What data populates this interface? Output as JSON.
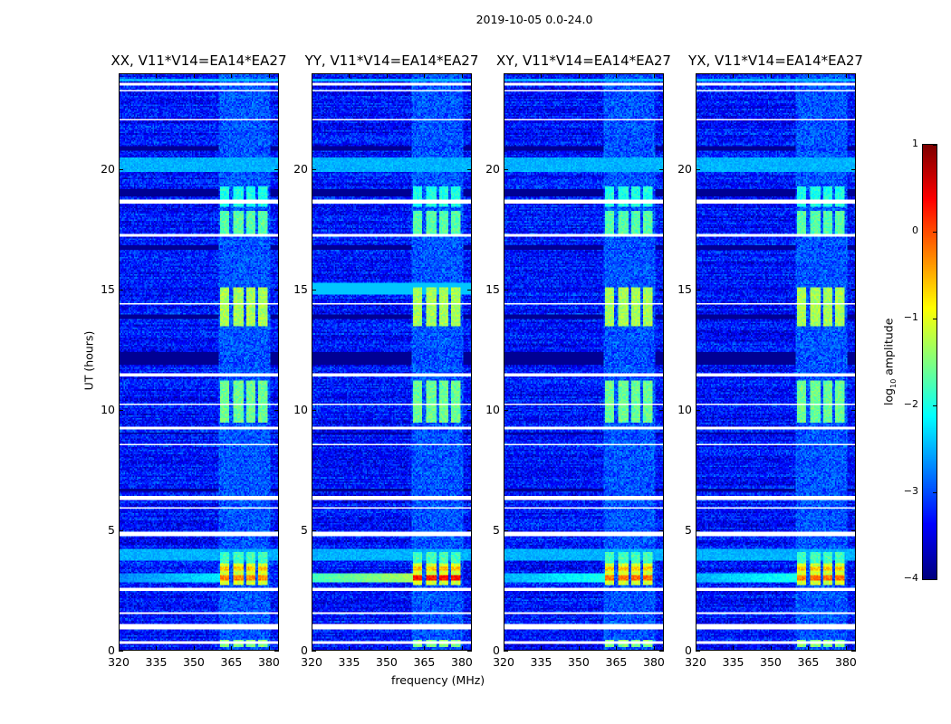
{
  "chart_data": {
    "type": "heatmap",
    "title": "2019-10-05 0.0-24.0",
    "xlabel": "frequency (MHz)",
    "ylabel": "UT (hours)",
    "xlim": [
      320,
      384
    ],
    "ylim": [
      0,
      24
    ],
    "xticks": [
      "320",
      "335",
      "350",
      "365",
      "380"
    ],
    "xtick_values": [
      320,
      335,
      350,
      365,
      380
    ],
    "yticks": [
      "0",
      "5",
      "10",
      "15",
      "20"
    ],
    "ytick_values": [
      0,
      5,
      10,
      15,
      20
    ],
    "colormap": "jet",
    "colorbar": {
      "label_prefix": "log",
      "label_sub": "10",
      "label_suffix": " amplitude",
      "range": [
        -4,
        1
      ],
      "ticks": [
        "−4",
        "−3",
        "−2",
        "−1",
        "0",
        "1"
      ],
      "tick_values": [
        -4,
        -3,
        -2,
        -1,
        0,
        1
      ]
    },
    "panels": [
      {
        "title": "XX, V11*V14=EA14*EA27",
        "peak": -0.3,
        "broadband_3h": -2.2
      },
      {
        "title": "YY, V11*V14=EA14*EA27",
        "peak": 0.3,
        "broadband_3h": -1.3
      },
      {
        "title": "XY, V11*V14=EA14*EA27",
        "peak": -0.2,
        "broadband_3h": -2.0
      },
      {
        "title": "YX, V11*V14=EA14*EA27",
        "peak": -0.2,
        "broadband_3h": -2.0
      }
    ],
    "background_level": -3.3,
    "rfi_channel_blocks_mhz": [
      [
        360.5,
        364.5
      ],
      [
        366,
        370
      ],
      [
        371,
        375
      ],
      [
        376,
        380
      ]
    ],
    "rfi_time_segments_h": [
      {
        "range": [
          0.1,
          0.4
        ],
        "level": -1.5
      },
      {
        "range": [
          2.7,
          3.6
        ],
        "level": -0.5
      },
      {
        "range": [
          3.6,
          4.1
        ],
        "level": -1.8
      },
      {
        "range": [
          9.5,
          11.2
        ],
        "level": -1.6
      },
      {
        "range": [
          13.5,
          15.1
        ],
        "level": -1.3
      },
      {
        "range": [
          17.2,
          18.3
        ],
        "level": -1.7
      },
      {
        "range": [
          18.5,
          19.3
        ],
        "level": -2.0
      }
    ],
    "flagged_rows_h": [
      [
        0.25,
        0.35
      ],
      [
        0.85,
        1.1
      ],
      [
        1.5,
        1.55
      ],
      [
        2.45,
        2.55
      ],
      [
        4.75,
        4.95
      ],
      [
        5.9,
        5.95
      ],
      [
        6.25,
        6.45
      ],
      [
        7.3,
        7.35
      ],
      [
        8.5,
        8.6
      ],
      [
        9.2,
        9.3
      ],
      [
        10.2,
        10.25
      ],
      [
        11.4,
        11.5
      ],
      [
        13.0,
        13.05
      ],
      [
        14.4,
        14.45
      ],
      [
        15.7,
        15.75
      ],
      [
        17.25,
        17.35
      ],
      [
        18.6,
        18.8
      ],
      [
        19.3,
        19.35
      ],
      [
        21.4,
        21.45
      ],
      [
        22.1,
        22.15
      ],
      [
        23.3,
        23.35
      ],
      [
        23.55,
        23.65
      ]
    ],
    "dark_rows_h": [
      [
        6.6,
        6.7
      ],
      [
        9.0,
        9.05
      ],
      [
        11.9,
        12.4
      ],
      [
        13.8,
        14.0
      ],
      [
        16.7,
        16.85
      ],
      [
        18.9,
        19.2
      ],
      [
        20.8,
        21.0
      ],
      [
        22.6,
        22.65
      ]
    ],
    "bright_broadband_rows_h": [
      [
        3.7,
        4.2
      ],
      [
        19.9,
        20.5
      ],
      [
        23.7,
        23.85
      ]
    ]
  }
}
